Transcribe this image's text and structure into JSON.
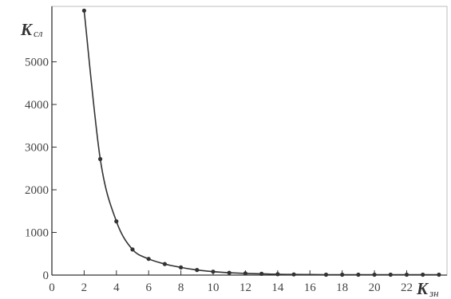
{
  "chart_data": {
    "type": "line",
    "title": "",
    "xlabel": {
      "main": "K",
      "sub": "зн"
    },
    "ylabel": {
      "main": "K",
      "sub": "сл"
    },
    "xlim": [
      0,
      24.5
    ],
    "ylim": [
      0,
      6300
    ],
    "xticks": [
      "0",
      "2",
      "4",
      "6",
      "8",
      "10",
      "12",
      "14",
      "16",
      "18",
      "20",
      "22"
    ],
    "yticks": [
      "0",
      "1000",
      "2000",
      "3000",
      "4000",
      "5000"
    ],
    "grid": false,
    "legend": "none",
    "series": [
      {
        "x": [
          2,
          3,
          4,
          5,
          6,
          7,
          8,
          9,
          10,
          11,
          12,
          13,
          14,
          15,
          17,
          18,
          19,
          20,
          21,
          22,
          23,
          24
        ],
        "y": [
          6200,
          2720,
          1260,
          600,
          380,
          260,
          180,
          120,
          80,
          55,
          40,
          30,
          20,
          15,
          10,
          10,
          10,
          10,
          10,
          10,
          10,
          10
        ]
      }
    ]
  }
}
